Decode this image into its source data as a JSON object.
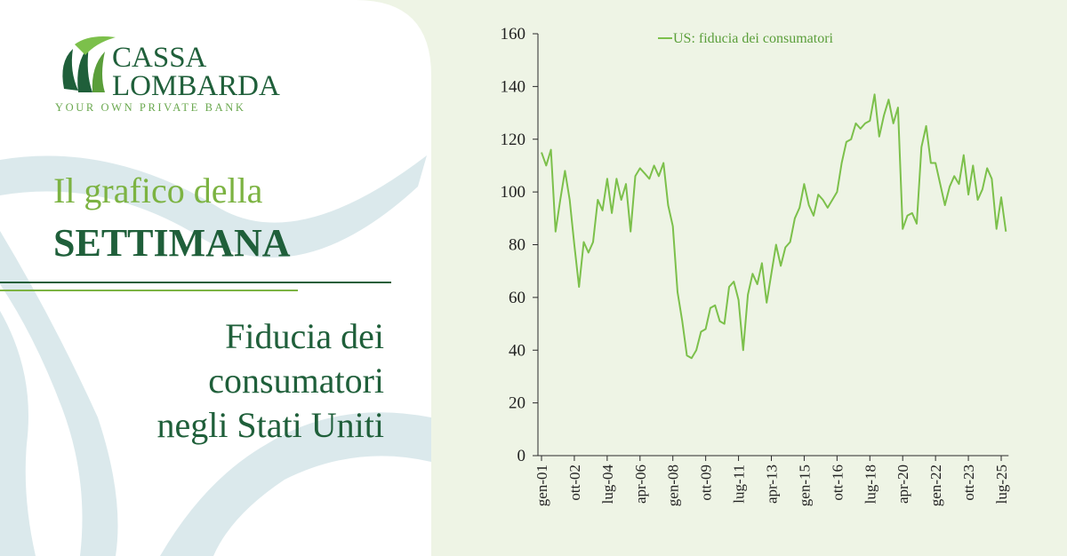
{
  "brand": {
    "name_line1": "CASSA",
    "name_line2": "LOMBARDA",
    "tagline": "YOUR OWN PRIVATE BANK"
  },
  "heading": {
    "kicker": "Il grafico della",
    "title": "SETTIMANA",
    "subtitle_lines": [
      "Fiducia dei",
      "consumatori",
      "negli Stati Uniti"
    ]
  },
  "chart_data": {
    "type": "line",
    "categories": [
      "gen-01",
      null,
      null,
      null,
      null,
      null,
      null,
      "ott-02",
      null,
      null,
      null,
      null,
      null,
      null,
      "lug-04",
      null,
      null,
      null,
      null,
      null,
      null,
      "apr-06",
      null,
      null,
      null,
      null,
      null,
      null,
      "gen-08",
      null,
      null,
      null,
      null,
      null,
      null,
      "ott-09",
      null,
      null,
      null,
      null,
      null,
      null,
      "lug-11",
      null,
      null,
      null,
      null,
      null,
      null,
      "apr-13",
      null,
      null,
      null,
      null,
      null,
      null,
      "gen-15",
      null,
      null,
      null,
      null,
      null,
      null,
      "ott-16",
      null,
      null,
      null,
      null,
      null,
      null,
      "lug-18",
      null,
      null,
      null,
      null,
      null,
      null,
      "apr-20",
      null,
      null,
      null,
      null,
      null,
      null,
      "gen-22",
      null,
      null,
      null,
      null,
      null,
      null,
      "ott-23",
      null,
      null,
      null,
      null,
      null,
      null,
      "lug-25",
      null
    ],
    "series": [
      {
        "name": "US: fiducia dei consumatori",
        "color": "#7cc04b",
        "values": [
          115,
          110,
          116,
          85,
          97,
          108,
          97,
          80,
          64,
          81,
          77,
          81,
          97,
          93,
          105,
          92,
          105,
          97,
          103,
          85,
          106,
          109,
          107,
          105,
          110,
          106,
          111,
          95,
          87,
          62,
          51,
          38,
          37,
          40,
          47,
          48,
          56,
          57,
          51,
          50,
          64,
          66,
          59,
          40,
          61,
          69,
          65,
          73,
          58,
          69,
          80,
          72,
          79,
          81,
          90,
          94,
          103,
          95,
          91,
          99,
          97,
          94,
          97,
          100,
          111,
          119,
          120,
          126,
          124,
          126,
          127,
          137,
          121,
          129,
          135,
          126,
          132,
          86,
          91,
          92,
          88,
          117,
          125,
          111,
          111,
          103,
          95,
          102,
          106,
          103,
          114,
          99,
          110,
          97,
          101,
          109,
          105,
          86,
          98,
          85
        ]
      }
    ],
    "ylim": [
      0,
      160
    ],
    "yticks": [
      0,
      20,
      40,
      60,
      80,
      100,
      120,
      140,
      160
    ],
    "legend": "top"
  }
}
